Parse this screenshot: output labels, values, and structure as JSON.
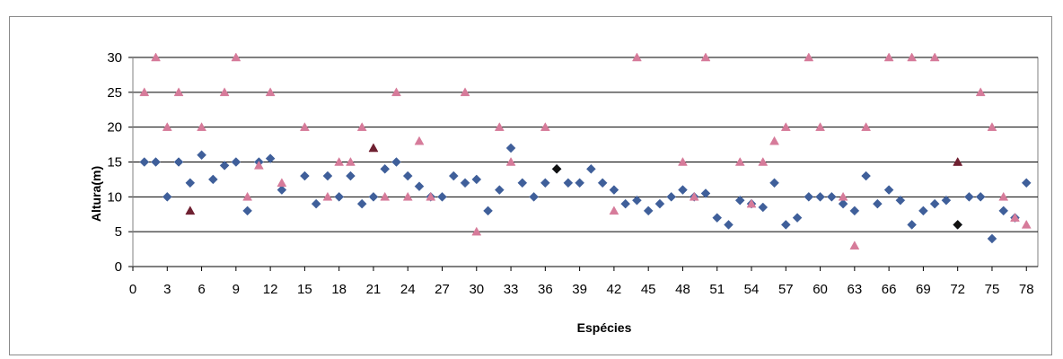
{
  "chart_data": {
    "type": "scatter",
    "xlabel": "Espécies",
    "ylabel": "Altura(m)",
    "xlim": [
      0,
      79
    ],
    "ylim": [
      0,
      30
    ],
    "x_ticks": [
      0,
      3,
      6,
      9,
      12,
      15,
      18,
      21,
      24,
      27,
      30,
      33,
      36,
      39,
      42,
      45,
      48,
      51,
      54,
      57,
      60,
      63,
      66,
      69,
      72,
      75,
      78
    ],
    "y_ticks": [
      0,
      5,
      10,
      15,
      20,
      25,
      30
    ],
    "grid": "horizontal",
    "legend": "none",
    "series": [
      {
        "marker": "diamond",
        "color": "#3F5F9A",
        "points": [
          [
            1,
            15
          ],
          [
            2,
            15
          ],
          [
            3,
            10
          ],
          [
            4,
            15
          ],
          [
            5,
            12
          ],
          [
            6,
            16
          ],
          [
            7,
            12.5
          ],
          [
            8,
            14.5
          ],
          [
            9,
            15
          ],
          [
            10,
            8
          ],
          [
            11,
            15
          ],
          [
            12,
            15.5
          ],
          [
            13,
            11
          ],
          [
            15,
            13
          ],
          [
            16,
            9
          ],
          [
            17,
            13
          ],
          [
            18,
            10
          ],
          [
            19,
            13
          ],
          [
            20,
            9
          ],
          [
            21,
            10
          ],
          [
            22,
            14
          ],
          [
            23,
            15
          ],
          [
            24,
            13
          ],
          [
            25,
            11.5
          ],
          [
            26,
            10
          ],
          [
            27,
            10
          ],
          [
            28,
            13
          ],
          [
            29,
            12
          ],
          [
            30,
            12.5
          ],
          [
            31,
            8
          ],
          [
            32,
            11
          ],
          [
            33,
            17
          ],
          [
            34,
            12
          ],
          [
            35,
            10
          ],
          [
            36,
            12
          ],
          [
            37,
            14
          ],
          [
            38,
            12
          ],
          [
            39,
            12
          ],
          [
            40,
            14
          ],
          [
            41,
            12
          ],
          [
            42,
            11
          ],
          [
            43,
            9
          ],
          [
            44,
            9.5
          ],
          [
            45,
            8
          ],
          [
            46,
            9
          ],
          [
            47,
            10
          ],
          [
            48,
            11
          ],
          [
            49,
            10
          ],
          [
            50,
            10.5
          ],
          [
            51,
            7
          ],
          [
            52,
            6
          ],
          [
            53,
            9.5
          ],
          [
            54,
            9
          ],
          [
            55,
            8.5
          ],
          [
            56,
            12
          ],
          [
            57,
            6
          ],
          [
            58,
            7
          ],
          [
            59,
            10
          ],
          [
            60,
            10
          ],
          [
            61,
            10
          ],
          [
            62,
            9
          ],
          [
            63,
            8
          ],
          [
            64,
            13
          ],
          [
            65,
            9
          ],
          [
            66,
            11
          ],
          [
            67,
            9.5
          ],
          [
            68,
            6
          ],
          [
            69,
            8
          ],
          [
            70,
            9
          ],
          [
            71,
            9.5
          ],
          [
            72,
            6
          ],
          [
            73,
            10
          ],
          [
            74,
            10
          ],
          [
            75,
            4
          ],
          [
            76,
            8
          ],
          [
            77,
            7
          ],
          [
            78,
            12
          ]
        ]
      },
      {
        "marker": "triangle",
        "color": "#D67B9A",
        "points": [
          [
            1,
            25
          ],
          [
            2,
            30
          ],
          [
            3,
            20
          ],
          [
            4,
            25
          ],
          [
            5,
            8
          ],
          [
            6,
            20
          ],
          [
            8,
            25
          ],
          [
            9,
            30
          ],
          [
            10,
            10
          ],
          [
            11,
            14.5
          ],
          [
            12,
            25
          ],
          [
            13,
            12
          ],
          [
            15,
            20
          ],
          [
            17,
            10
          ],
          [
            18,
            15
          ],
          [
            19,
            15
          ],
          [
            20,
            20
          ],
          [
            21,
            17
          ],
          [
            22,
            10
          ],
          [
            23,
            25
          ],
          [
            24,
            10
          ],
          [
            25,
            18
          ],
          [
            26,
            10
          ],
          [
            29,
            25
          ],
          [
            30,
            5
          ],
          [
            32,
            20
          ],
          [
            33,
            15
          ],
          [
            36,
            20
          ],
          [
            42,
            8
          ],
          [
            44,
            30
          ],
          [
            48,
            15
          ],
          [
            49,
            10
          ],
          [
            50,
            30
          ],
          [
            53,
            15
          ],
          [
            54,
            9
          ],
          [
            55,
            15
          ],
          [
            56,
            18
          ],
          [
            57,
            20
          ],
          [
            59,
            30
          ],
          [
            60,
            20
          ],
          [
            62,
            10
          ],
          [
            63,
            3
          ],
          [
            64,
            20
          ],
          [
            66,
            30
          ],
          [
            68,
            30
          ],
          [
            70,
            30
          ],
          [
            72,
            15
          ],
          [
            74,
            25
          ],
          [
            75,
            20
          ],
          [
            76,
            10
          ],
          [
            77,
            7
          ],
          [
            78,
            6
          ]
        ]
      },
      {
        "marker": "triangle",
        "color": "#6E2131",
        "points": [
          [
            5,
            8
          ],
          [
            21,
            17
          ],
          [
            72,
            15
          ]
        ]
      },
      {
        "marker": "diamond",
        "color": "#111111",
        "points": [
          [
            37,
            14
          ],
          [
            72,
            6
          ]
        ]
      }
    ]
  }
}
